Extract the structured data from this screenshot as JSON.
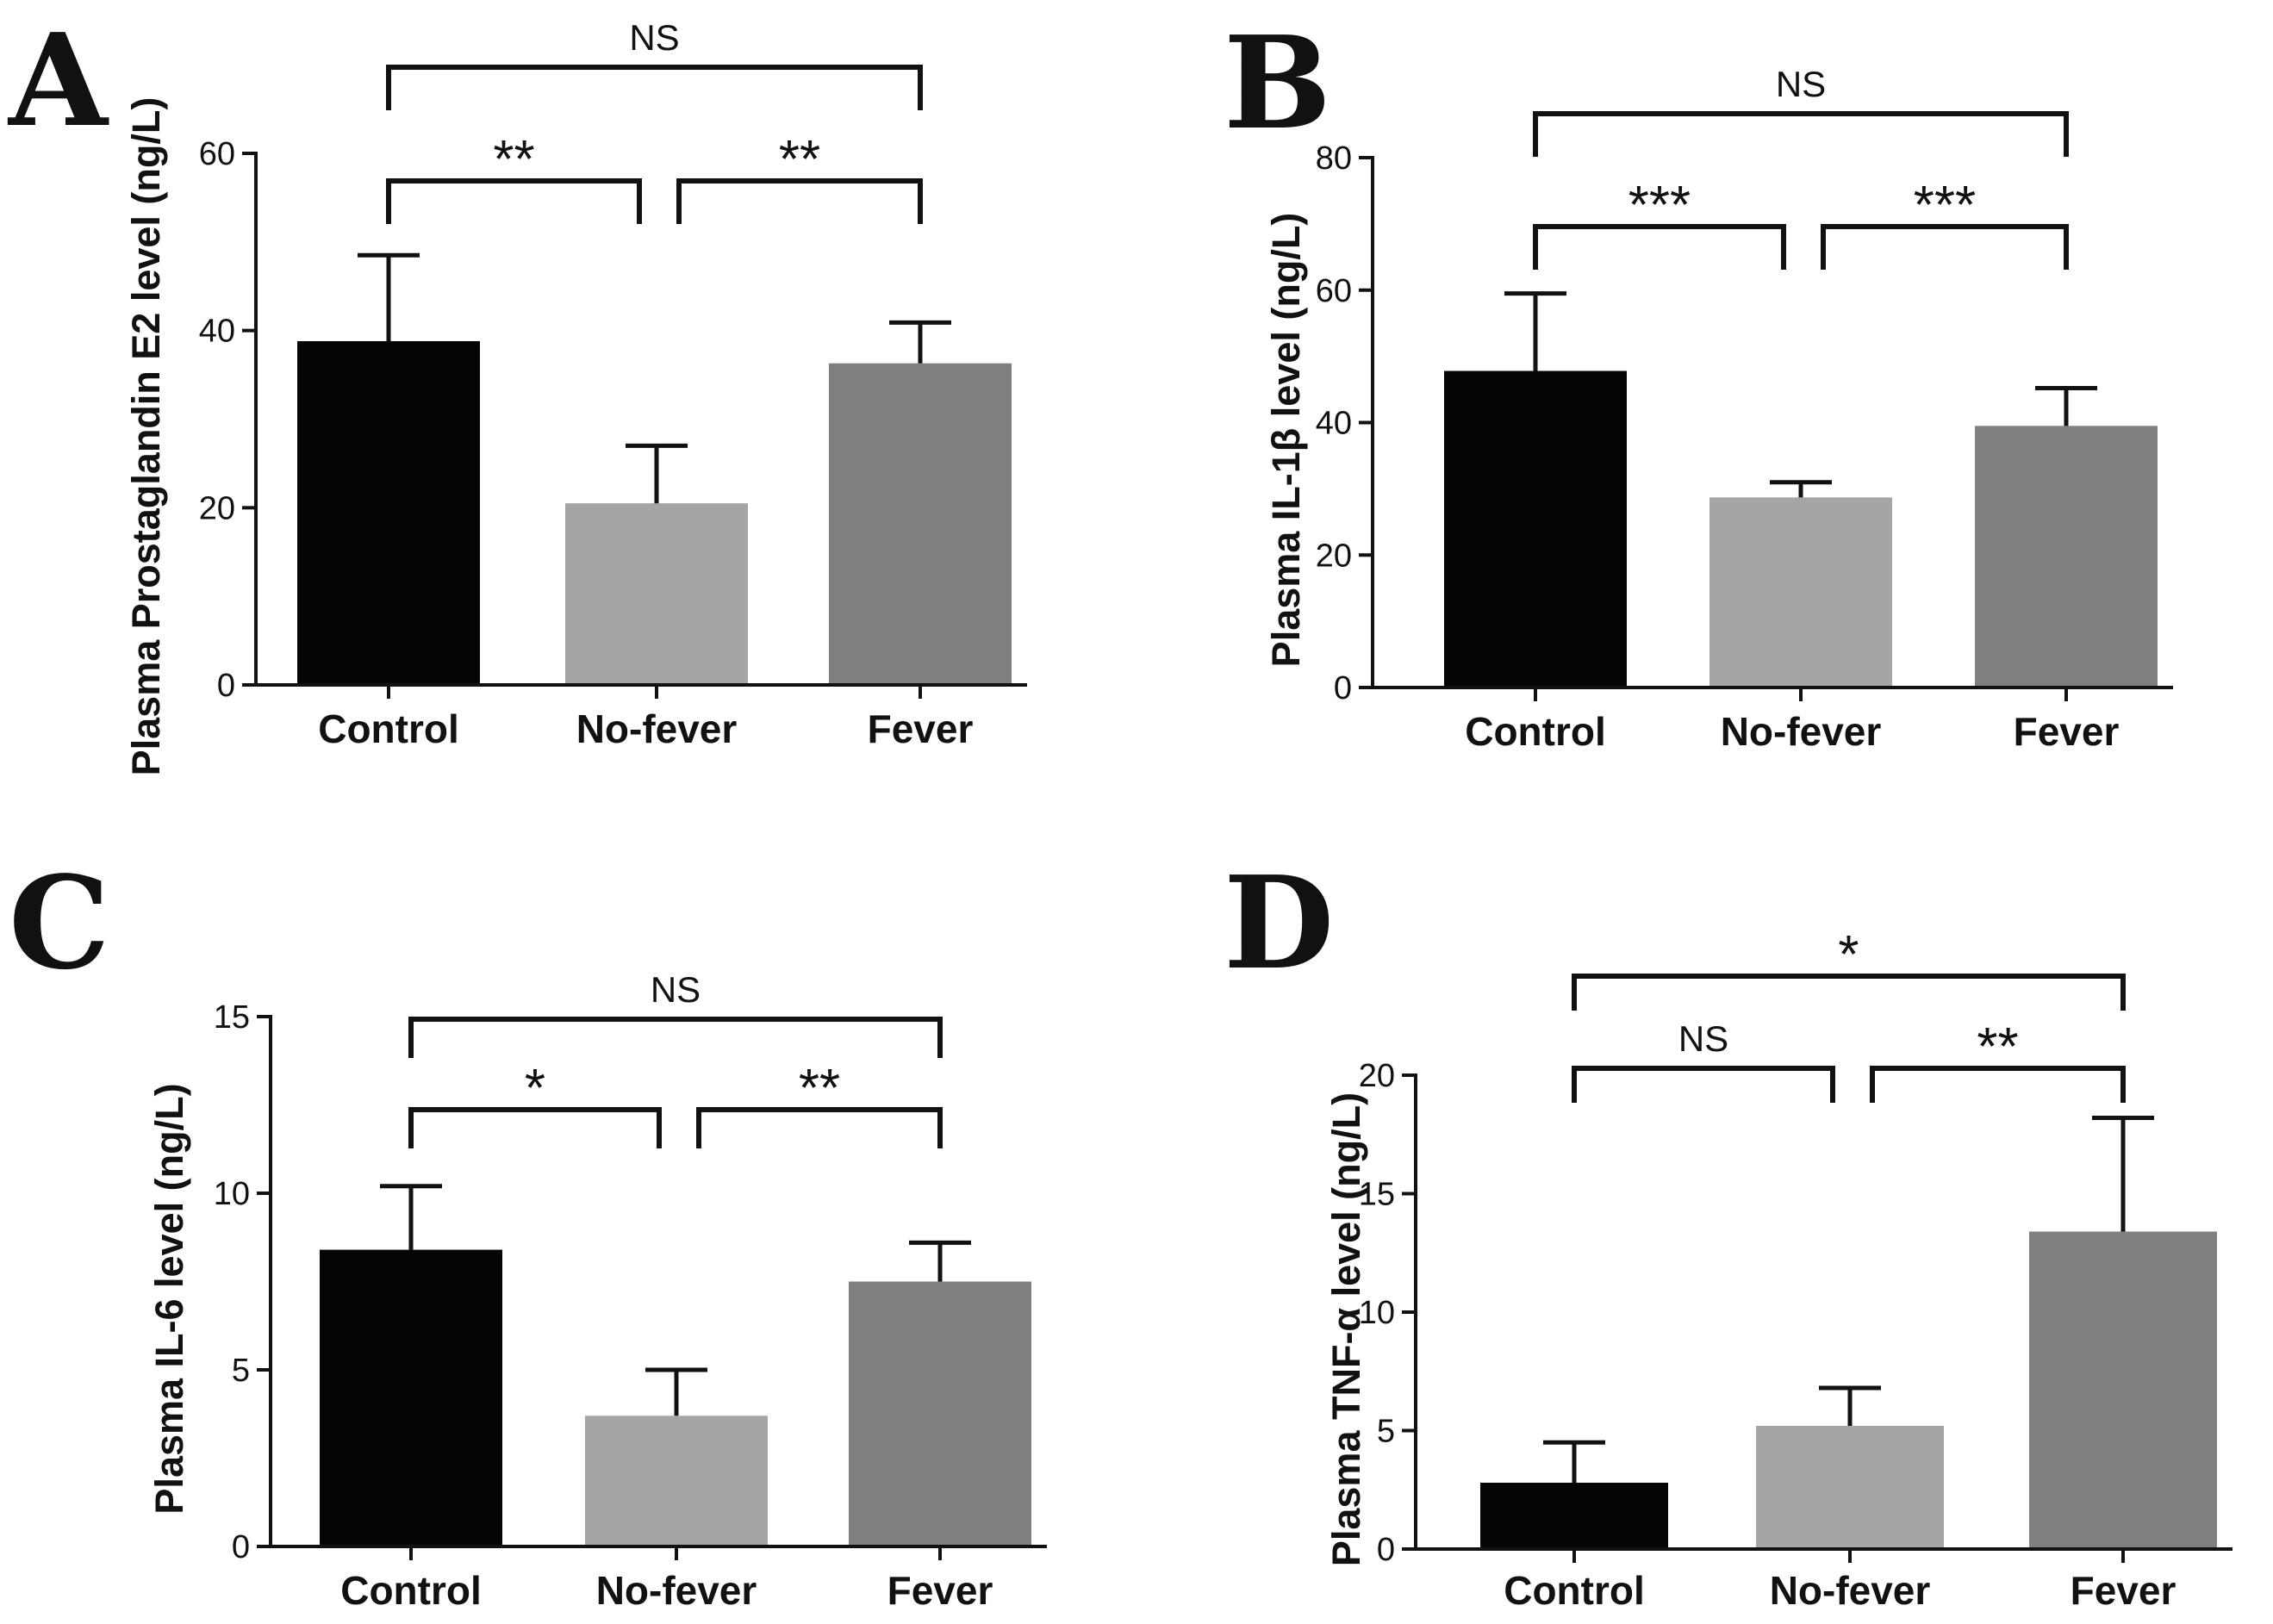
{
  "colors": {
    "control": "#050505",
    "no_fever": "#a5a5a8",
    "fever": "#7f7f80",
    "axis": "#111111"
  },
  "chart_data": [
    {
      "type": "bar",
      "panel": "A",
      "title": "",
      "xlabel": "",
      "ylabel": "Plasma Prostaglandin E2 level (ng/L)",
      "categories": [
        "Control",
        "No-fever",
        "Fever"
      ],
      "values": [
        38.8,
        20.5,
        36.3
      ],
      "error": [
        9.7,
        6.5,
        4.6
      ],
      "ylim": [
        0,
        60
      ],
      "yticks": [
        0,
        20,
        40,
        60
      ],
      "comparisons": [
        {
          "from": 0,
          "to": 1,
          "label": "**"
        },
        {
          "from": 1,
          "to": 2,
          "label": "**"
        },
        {
          "from": 0,
          "to": 2,
          "label": "NS"
        }
      ]
    },
    {
      "type": "bar",
      "panel": "B",
      "title": "",
      "xlabel": "",
      "ylabel": "Plasma IL-1β level (ng/L)",
      "categories": [
        "Control",
        "No-fever",
        "Fever"
      ],
      "values": [
        47.8,
        28.7,
        39.5
      ],
      "error": [
        11.7,
        2.3,
        5.7
      ],
      "ylim": [
        0,
        80
      ],
      "yticks": [
        0,
        20,
        40,
        60,
        80
      ],
      "comparisons": [
        {
          "from": 0,
          "to": 1,
          "label": "***"
        },
        {
          "from": 1,
          "to": 2,
          "label": "***"
        },
        {
          "from": 0,
          "to": 2,
          "label": "NS"
        }
      ]
    },
    {
      "type": "bar",
      "panel": "C",
      "title": "",
      "xlabel": "",
      "ylabel": "Plasma IL-6 level (ng/L)",
      "categories": [
        "Control",
        "No-fever",
        "Fever"
      ],
      "values": [
        8.4,
        3.7,
        7.5
      ],
      "error": [
        1.8,
        1.3,
        1.1
      ],
      "ylim": [
        0,
        15
      ],
      "yticks": [
        0,
        5,
        10,
        15
      ],
      "comparisons": [
        {
          "from": 0,
          "to": 1,
          "label": "*"
        },
        {
          "from": 1,
          "to": 2,
          "label": "**"
        },
        {
          "from": 0,
          "to": 2,
          "label": "NS"
        }
      ]
    },
    {
      "type": "bar",
      "panel": "D",
      "title": "",
      "xlabel": "",
      "ylabel": "Plasma TNF-α level (ng/L)",
      "categories": [
        "Control",
        "No-fever",
        "Fever"
      ],
      "values": [
        2.8,
        5.2,
        13.4
      ],
      "error": [
        1.7,
        1.6,
        4.8
      ],
      "ylim": [
        0,
        20
      ],
      "yticks": [
        0,
        5,
        10,
        15,
        20
      ],
      "comparisons": [
        {
          "from": 0,
          "to": 1,
          "label": "NS"
        },
        {
          "from": 1,
          "to": 2,
          "label": "**"
        },
        {
          "from": 0,
          "to": 2,
          "label": "*"
        }
      ]
    }
  ]
}
